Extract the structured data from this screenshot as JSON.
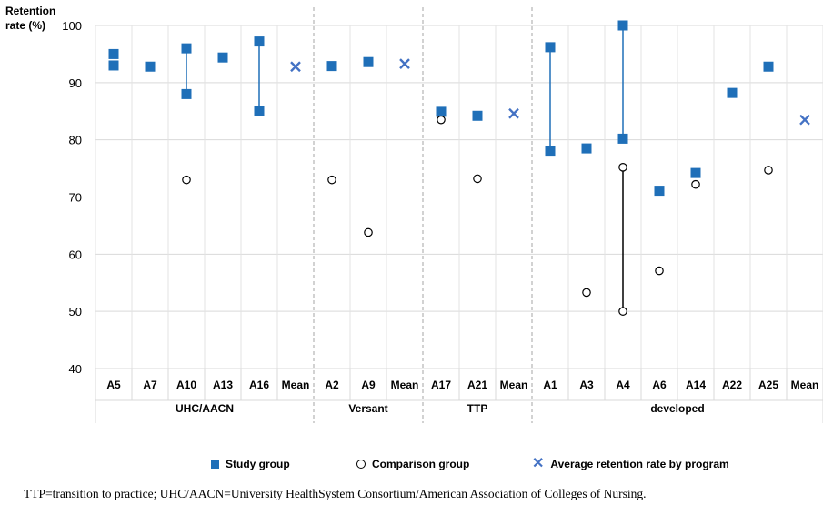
{
  "chart_data": {
    "type": "scatter",
    "ylabel_lines": [
      "Retention",
      "rate (%)"
    ],
    "ylim": [
      40,
      100
    ],
    "yticks": [
      40,
      50,
      60,
      70,
      80,
      90,
      100
    ],
    "grid": true,
    "groups": [
      {
        "name": "UHC/AACN",
        "categories": [
          "A5",
          "A7",
          "A10",
          "A13",
          "A16",
          "Mean"
        ]
      },
      {
        "name": "Versant",
        "categories": [
          "A2",
          "A9",
          "Mean"
        ]
      },
      {
        "name": "TTP",
        "categories": [
          "A17",
          "A21",
          "Mean"
        ]
      },
      {
        "name": "developed",
        "categories": [
          "A1",
          "A3",
          "A4",
          "A6",
          "A14",
          "A22",
          "A25",
          "Mean"
        ]
      }
    ],
    "series": [
      {
        "name": "Study group",
        "marker": "square",
        "color": "#1f6fb8",
        "points": [
          {
            "group": 0,
            "cat": 0,
            "y": 95.0
          },
          {
            "group": 0,
            "cat": 0,
            "y": 93.0
          },
          {
            "group": 0,
            "cat": 1,
            "y": 92.8
          },
          {
            "group": 0,
            "cat": 2,
            "y": 96.0
          },
          {
            "group": 0,
            "cat": 2,
            "y": 88.0
          },
          {
            "group": 0,
            "cat": 3,
            "y": 94.4
          },
          {
            "group": 0,
            "cat": 4,
            "y": 97.2
          },
          {
            "group": 0,
            "cat": 4,
            "y": 85.1
          },
          {
            "group": 1,
            "cat": 0,
            "y": 92.9
          },
          {
            "group": 1,
            "cat": 1,
            "y": 93.6
          },
          {
            "group": 2,
            "cat": 0,
            "y": 84.9
          },
          {
            "group": 2,
            "cat": 1,
            "y": 84.2
          },
          {
            "group": 3,
            "cat": 0,
            "y": 96.2
          },
          {
            "group": 3,
            "cat": 0,
            "y": 78.1
          },
          {
            "group": 3,
            "cat": 1,
            "y": 78.5
          },
          {
            "group": 3,
            "cat": 2,
            "y": 100.0
          },
          {
            "group": 3,
            "cat": 2,
            "y": 80.2
          },
          {
            "group": 3,
            "cat": 3,
            "y": 71.1
          },
          {
            "group": 3,
            "cat": 4,
            "y": 74.2
          },
          {
            "group": 3,
            "cat": 5,
            "y": 88.2
          },
          {
            "group": 3,
            "cat": 6,
            "y": 92.8
          }
        ]
      },
      {
        "name": "Comparison group",
        "marker": "open-circle",
        "color": "#000000",
        "points": [
          {
            "group": 0,
            "cat": 2,
            "y": 73.0
          },
          {
            "group": 1,
            "cat": 0,
            "y": 73.0
          },
          {
            "group": 1,
            "cat": 1,
            "y": 63.8
          },
          {
            "group": 2,
            "cat": 0,
            "y": 83.5
          },
          {
            "group": 2,
            "cat": 1,
            "y": 73.2
          },
          {
            "group": 3,
            "cat": 1,
            "y": 53.3
          },
          {
            "group": 3,
            "cat": 2,
            "y": 75.2
          },
          {
            "group": 3,
            "cat": 2,
            "y": 50.0
          },
          {
            "group": 3,
            "cat": 3,
            "y": 57.1
          },
          {
            "group": 3,
            "cat": 4,
            "y": 72.2
          },
          {
            "group": 3,
            "cat": 6,
            "y": 74.7
          }
        ]
      },
      {
        "name": "Average retention rate by program",
        "marker": "x",
        "color": "#4472c4",
        "points": [
          {
            "group": 0,
            "cat": 5,
            "y": 92.8
          },
          {
            "group": 1,
            "cat": 2,
            "y": 93.3
          },
          {
            "group": 2,
            "cat": 2,
            "y": 84.6
          },
          {
            "group": 3,
            "cat": 7,
            "y": 83.5
          }
        ]
      }
    ],
    "range_lines": [
      {
        "group": 0,
        "cat": 2,
        "y1": 96.0,
        "y2": 88.0,
        "color": "#1f6fb8"
      },
      {
        "group": 0,
        "cat": 4,
        "y1": 97.2,
        "y2": 85.1,
        "color": "#1f6fb8"
      },
      {
        "group": 3,
        "cat": 0,
        "y1": 96.2,
        "y2": 78.1,
        "color": "#1f6fb8"
      },
      {
        "group": 3,
        "cat": 2,
        "y1": 100.0,
        "y2": 80.2,
        "color": "#1f6fb8"
      },
      {
        "group": 3,
        "cat": 2,
        "y1": 75.2,
        "y2": 50.0,
        "color": "#000000"
      }
    ]
  },
  "legend": {
    "study": "Study group",
    "comparison": "Comparison group",
    "average": "Average retention rate by program"
  },
  "footnote": "TTP=transition to practice; UHC/AACN=University HealthSystem Consortium/American Association of Colleges of Nursing."
}
